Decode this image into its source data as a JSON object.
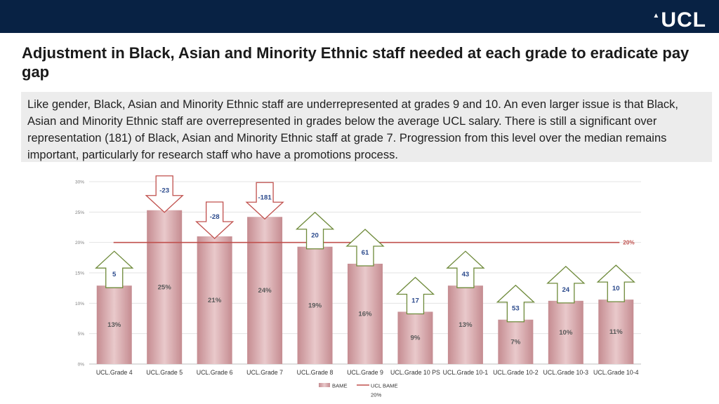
{
  "header": {
    "logo": "UCL",
    "logo_mark": "▲"
  },
  "title": "Adjustment in Black, Asian and Minority Ethnic staff needed at each grade to eradicate pay gap",
  "intro": "Like gender, Black, Asian and Minority Ethnic staff are underrepresented at grades 9 and 10. An even larger issue is that Black, Asian and Minority Ethnic staff are overrepresented in grades below the average UCL salary. There is still a significant over representation (181) of Black, Asian and Minority Ethnic staff at grade 7. Progression from this level over the median remains important, particularly for research staff who have a promotions process.",
  "colors": {
    "topbar": "#082244",
    "bar": "#d7a7aa",
    "line": "#c0504d",
    "arrow_stroke": "#6e8a3a",
    "adj_text": "#2b4a8c"
  },
  "chart_data": {
    "type": "bar",
    "title": "",
    "categories": [
      "UCL.Grade 4",
      "UCL.Grade 5",
      "UCL.Grade 6",
      "UCL.Grade 7",
      "UCL.Grade 8",
      "UCL.Grade 9",
      "UCL.Grade 10 PS",
      "UCL.Grade 10-1",
      "UCL.Grade 10-2",
      "UCL.Grade 10-3",
      "UCL.Grade 10-4"
    ],
    "series": [
      {
        "name": "BAME",
        "values": [
          12.9,
          25.3,
          21.0,
          24.2,
          19.3,
          16.5,
          8.6,
          12.9,
          7.3,
          10.4,
          10.6
        ]
      }
    ],
    "data_labels": [
      "13%",
      "25%",
      "21%",
      "24%",
      "19%",
      "16%",
      "9%",
      "13%",
      "7%",
      "10%",
      "11%"
    ],
    "reference_line": {
      "name": "UCL BAME",
      "value": 20,
      "label": "20%"
    },
    "adjustments": [
      {
        "label": "5",
        "direction": "up"
      },
      {
        "label": "-23",
        "direction": "down"
      },
      {
        "label": "-28",
        "direction": "down"
      },
      {
        "label": "-181",
        "direction": "down"
      },
      {
        "label": "20",
        "direction": "up"
      },
      {
        "label": "61",
        "direction": "up"
      },
      {
        "label": "17",
        "direction": "up"
      },
      {
        "label": "43",
        "direction": "up"
      },
      {
        "label": "53",
        "direction": "up"
      },
      {
        "label": "24",
        "direction": "up"
      },
      {
        "label": "10",
        "direction": "up"
      }
    ],
    "ylim": [
      0,
      30
    ],
    "yticks": [
      "0%",
      "5%",
      "10%",
      "15%",
      "20%",
      "25%",
      "30%"
    ],
    "grid": true,
    "legend": {
      "placement": "bottom-center",
      "items": [
        "BAME",
        "UCL BAME"
      ],
      "sub_label": "20%"
    },
    "xlabel": "",
    "ylabel": ""
  }
}
